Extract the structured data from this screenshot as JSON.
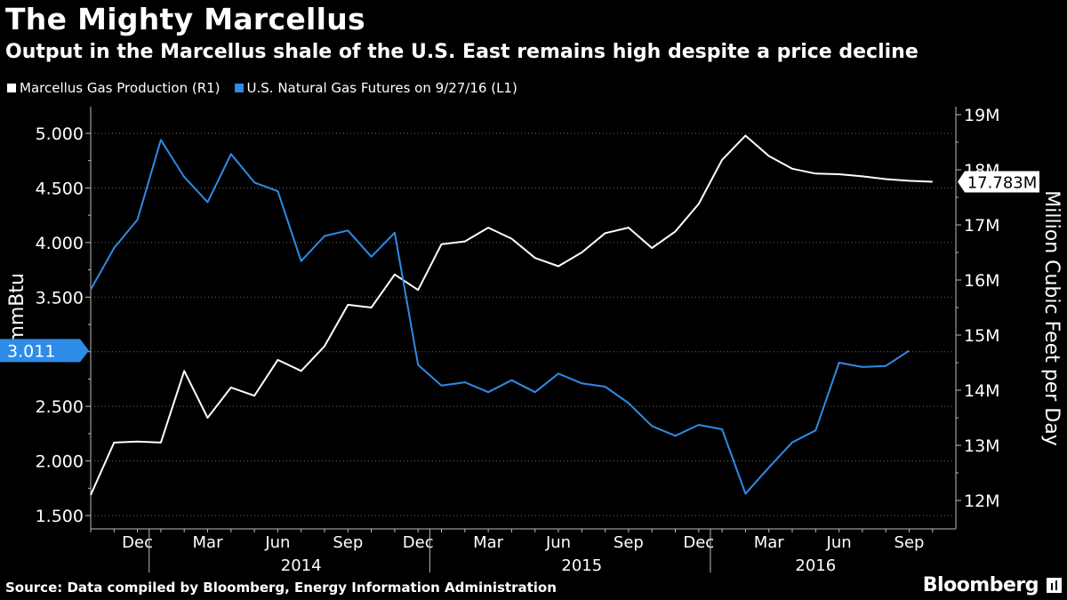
{
  "header": {
    "title": "The Mighty Marcellus",
    "subtitle": "Output in the Marcellus shale of the U.S. East remains high despite a price decline"
  },
  "footer": {
    "source": "Source: Data compiled by Bloomberg, Energy Information Administration",
    "brand": "Bloomberg"
  },
  "colors": {
    "background": "#000000",
    "production": "#ffffff",
    "futures": "#2e8be6"
  },
  "chart_data": {
    "type": "line",
    "x_tick_labels": [
      "Dec",
      "Mar",
      "Jun",
      "Sep",
      "Dec",
      "Mar",
      "Jun",
      "Sep",
      "Dec",
      "Mar",
      "Jun",
      "Sep"
    ],
    "x_year_labels": [
      "2014",
      "2015",
      "2016"
    ],
    "y_left": {
      "label": "$/mmBtu",
      "range": [
        1.5,
        5.0
      ],
      "ticks": [
        "1.500",
        "2.000",
        "2.500",
        "3.000",
        "3.500",
        "4.000",
        "4.500",
        "5.000"
      ],
      "current_label": "3.011"
    },
    "y_right": {
      "label": "Million Cubic Feet per Day",
      "range": [
        12,
        19
      ],
      "ticks": [
        "12M",
        "13M",
        "14M",
        "15M",
        "16M",
        "17M",
        "18M",
        "19M"
      ],
      "current_label": "17.783M"
    },
    "series": [
      {
        "name": "Marcellus Gas Production (R1)",
        "axis": "right",
        "x": [
          "2013-10",
          "2013-11",
          "2013-12",
          "2014-01",
          "2014-02",
          "2014-03",
          "2014-04",
          "2014-05",
          "2014-06",
          "2014-07",
          "2014-08",
          "2014-09",
          "2014-10",
          "2014-11",
          "2014-12",
          "2015-01",
          "2015-02",
          "2015-03",
          "2015-04",
          "2015-05",
          "2015-06",
          "2015-07",
          "2015-08",
          "2015-09",
          "2015-10",
          "2015-11",
          "2015-12",
          "2016-01",
          "2016-02",
          "2016-03",
          "2016-04",
          "2016-05",
          "2016-06",
          "2016-07",
          "2016-08",
          "2016-09",
          "2016-10"
        ],
        "values": [
          12.1,
          13.05,
          13.07,
          13.05,
          14.35,
          13.5,
          14.05,
          13.9,
          14.55,
          14.35,
          14.8,
          15.55,
          15.5,
          16.1,
          15.82,
          16.65,
          16.7,
          16.95,
          16.75,
          16.4,
          16.25,
          16.5,
          16.85,
          16.95,
          16.58,
          16.88,
          17.38,
          18.18,
          18.62,
          18.25,
          18.02,
          17.93,
          17.92,
          17.88,
          17.83,
          17.8,
          17.783
        ]
      },
      {
        "name": "U.S. Natural Gas Futures  on 9/27/16 (L1)",
        "axis": "left",
        "x": [
          "2013-10",
          "2013-11",
          "2013-12",
          "2014-01",
          "2014-02",
          "2014-03",
          "2014-04",
          "2014-05",
          "2014-06",
          "2014-07",
          "2014-08",
          "2014-09",
          "2014-10",
          "2014-11",
          "2014-12",
          "2015-01",
          "2015-02",
          "2015-03",
          "2015-04",
          "2015-05",
          "2015-06",
          "2015-07",
          "2015-08",
          "2015-09",
          "2015-10",
          "2015-11",
          "2015-12",
          "2016-01",
          "2016-02",
          "2016-03",
          "2016-04",
          "2016-05",
          "2016-06",
          "2016-07",
          "2016-08",
          "2016-09"
        ],
        "values": [
          3.57,
          3.95,
          4.21,
          4.94,
          4.6,
          4.37,
          4.81,
          4.55,
          4.47,
          3.83,
          4.06,
          4.11,
          3.87,
          4.09,
          2.88,
          2.69,
          2.72,
          2.63,
          2.74,
          2.63,
          2.8,
          2.71,
          2.68,
          2.53,
          2.32,
          2.23,
          2.33,
          2.29,
          1.7,
          1.94,
          2.17,
          2.28,
          2.9,
          2.86,
          2.87,
          3.011
        ]
      }
    ],
    "grid": true,
    "legend_position": "top-left"
  }
}
